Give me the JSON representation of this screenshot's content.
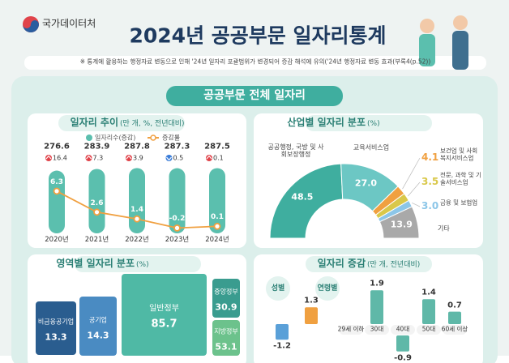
{
  "header": {
    "agency": "국가데이터처",
    "title": "2024년 공공부문 일자리통계",
    "note": "※ 통계에 활용하는 행정자료 변동으로 인해 '24년 일자리 포괄범위가 변경되어 증감 해석에 유의('24년 행정자료 변동 효과(부록4(p.52))",
    "section": "공공부문 전체 일자리"
  },
  "chart_data": [
    {
      "type": "combo",
      "title": "일자리 추이",
      "subtitle": "(만 개, %, 전년대비)",
      "categories": [
        "2020년",
        "2021년",
        "2022년",
        "2023년",
        "2024년"
      ],
      "series": [
        {
          "name": "일자리수(증감)",
          "color": "#5bbfae",
          "values": [
            276.6,
            283.9,
            287.8,
            287.3,
            287.5
          ]
        },
        {
          "name": "증감률",
          "color": "#f0a040",
          "values": [
            6.3,
            2.6,
            1.4,
            -0.2,
            0.1
          ]
        }
      ],
      "changes": {
        "values": [
          16.4,
          7.3,
          3.9,
          -0.5,
          0.1
        ],
        "value_labels": [
          "16.4",
          "7.3",
          "3.9",
          "0.5",
          "0.1"
        ]
      }
    },
    {
      "type": "donut",
      "title": "산업별 일자리 분포",
      "subtitle": "(%)",
      "categories": [
        "공공행정, 국방 및 사회보장행정",
        "교육서비스업",
        "보건업 및 사회복지서비스업",
        "전문, 과학 및 기술서비스업",
        "금융 및 보험업",
        "기타"
      ],
      "values": [
        48.5,
        27.0,
        4.1,
        3.5,
        3.0,
        13.9
      ],
      "value_labels": [
        "48.5",
        "27.0",
        "4.1",
        "3.5",
        "3.0",
        "13.9"
      ],
      "colors": [
        "#3fae9f",
        "#6cc7c4",
        "#f0a040",
        "#d9c84a",
        "#8cc6e8",
        "#a9a9a9"
      ]
    },
    {
      "type": "treemap",
      "title": "영역별 일자리 분포",
      "subtitle": "(%)",
      "categories": [
        "비금융공기업",
        "공기업",
        "일반정부",
        "중앙정부",
        "지방정부"
      ],
      "values": [
        13.3,
        14.3,
        85.7,
        30.9,
        53.1
      ],
      "colors": [
        "#2a5d8f",
        "#4a8bc2",
        "#4fb9a5",
        "#3a9c8f",
        "#6cc28c"
      ]
    },
    {
      "type": "bar",
      "title": "일자리 증감",
      "subtitle": "(만 개, 전년대비)",
      "sections": [
        {
          "name": "성별",
          "values": [
            -1.2,
            1.3
          ],
          "colors": [
            "#5aa0d8",
            "#f0a040"
          ]
        },
        {
          "name": "연령별",
          "categories": [
            "29세 이하",
            "30대",
            "40대",
            "50대",
            "60세 이상"
          ],
          "values": [
            null,
            1.9,
            -0.9,
            1.4,
            0.7
          ],
          "color": "#5fb8a8"
        }
      ]
    }
  ]
}
